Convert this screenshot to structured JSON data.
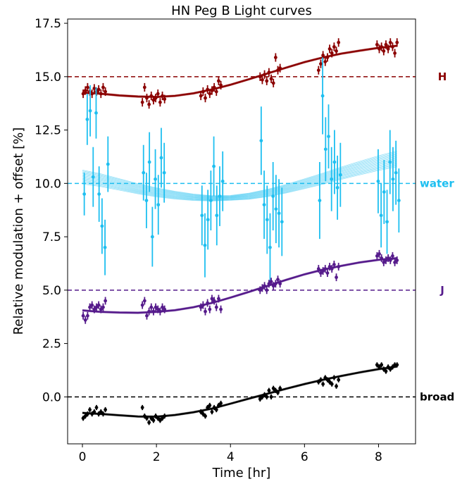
{
  "chart_data": {
    "type": "scatter",
    "title": "HN Peg B Light curves",
    "xlabel": "Time [hr]",
    "ylabel": "Relative modulation + offset [%]",
    "xlim": [
      -0.4,
      9.0
    ],
    "ylim": [
      -2.2,
      17.7
    ],
    "xticks": [
      0,
      2,
      4,
      6,
      8
    ],
    "xtick_labels": [
      "0",
      "2",
      "4",
      "6",
      "8"
    ],
    "yticks": [
      0.0,
      2.5,
      5.0,
      7.5,
      10.0,
      12.5,
      15.0,
      17.5
    ],
    "ytick_labels": [
      "0.0",
      "2.5",
      "5.0",
      "7.5",
      "10.0",
      "12.5",
      "15.0",
      "17.5"
    ],
    "grid": false,
    "series": [
      {
        "name": "H",
        "offset": 15.0,
        "color": "#8b0000",
        "x": [
          0.02,
          0.08,
          0.14,
          0.2,
          0.26,
          0.32,
          0.38,
          0.44,
          0.5,
          0.56,
          0.62,
          1.62,
          1.68,
          1.74,
          1.8,
          1.86,
          1.92,
          1.98,
          2.04,
          2.1,
          2.16,
          2.22,
          3.2,
          3.26,
          3.32,
          3.38,
          3.44,
          3.5,
          3.56,
          3.62,
          3.68,
          3.74,
          4.8,
          4.86,
          4.92,
          4.98,
          5.04,
          5.1,
          5.16,
          5.22,
          5.28,
          5.34,
          6.38,
          6.44,
          6.5,
          6.56,
          6.62,
          6.68,
          6.74,
          6.8,
          6.86,
          6.92,
          7.96,
          8.02,
          8.08,
          8.14,
          8.2,
          8.26,
          8.32,
          8.38,
          8.44,
          8.5
        ],
        "y": [
          14.2,
          14.35,
          14.5,
          14.3,
          14.2,
          14.45,
          14.3,
          14.4,
          14.2,
          14.5,
          14.3,
          13.8,
          14.5,
          14.0,
          13.7,
          14.1,
          13.9,
          14.0,
          14.2,
          13.8,
          14.1,
          13.95,
          14.1,
          14.3,
          14.0,
          14.4,
          14.2,
          14.35,
          14.5,
          14.3,
          14.8,
          14.6,
          15.0,
          14.85,
          15.1,
          14.8,
          15.2,
          14.9,
          14.7,
          15.9,
          15.3,
          15.4,
          15.3,
          15.6,
          16.0,
          15.7,
          15.9,
          16.3,
          16.1,
          16.4,
          16.2,
          16.6,
          16.5,
          16.3,
          16.4,
          16.2,
          16.5,
          16.3,
          16.6,
          16.4,
          16.1,
          16.6
        ],
        "err": [
          0.2,
          0.2,
          0.2,
          0.2,
          0.2,
          0.2,
          0.2,
          0.2,
          0.2,
          0.2,
          0.2,
          0.2,
          0.2,
          0.2,
          0.2,
          0.2,
          0.2,
          0.2,
          0.2,
          0.2,
          0.2,
          0.2,
          0.2,
          0.2,
          0.2,
          0.2,
          0.2,
          0.2,
          0.2,
          0.2,
          0.2,
          0.2,
          0.2,
          0.2,
          0.2,
          0.2,
          0.2,
          0.2,
          0.2,
          0.2,
          0.2,
          0.2,
          0.2,
          0.2,
          0.2,
          0.2,
          0.2,
          0.2,
          0.2,
          0.2,
          0.2,
          0.2,
          0.2,
          0.2,
          0.2,
          0.2,
          0.2,
          0.2,
          0.2,
          0.2,
          0.2,
          0.2
        ],
        "model_x": [
          0,
          0.5,
          1,
          1.5,
          2,
          2.5,
          3,
          3.5,
          4,
          4.5,
          5,
          5.5,
          6,
          6.5,
          7,
          7.5,
          8,
          8.5
        ],
        "model_y": [
          14.25,
          14.2,
          14.12,
          14.07,
          14.05,
          14.1,
          14.22,
          14.4,
          14.62,
          14.88,
          15.15,
          15.42,
          15.68,
          15.9,
          16.08,
          16.22,
          16.35,
          16.45
        ]
      },
      {
        "name": "water",
        "offset": 10.0,
        "color": "#1ebff0",
        "x": [
          0.05,
          0.13,
          0.21,
          0.29,
          0.37,
          0.45,
          0.53,
          0.61,
          0.69,
          1.65,
          1.73,
          1.81,
          1.89,
          1.97,
          2.05,
          2.13,
          2.21,
          3.23,
          3.31,
          3.39,
          3.47,
          3.55,
          3.63,
          3.71,
          3.79,
          4.83,
          4.91,
          4.99,
          5.07,
          5.15,
          5.23,
          5.31,
          5.39,
          6.41,
          6.49,
          6.57,
          6.65,
          6.73,
          6.81,
          6.89,
          6.97,
          7.99,
          8.07,
          8.15,
          8.23,
          8.31,
          8.39,
          8.47,
          8.55
        ],
        "y": [
          9.5,
          13.0,
          13.4,
          10.3,
          13.3,
          9.5,
          8.0,
          7.0,
          10.9,
          10.5,
          9.2,
          11.0,
          7.5,
          10.2,
          9.0,
          11.2,
          10.5,
          8.5,
          7.1,
          8.3,
          9.2,
          10.8,
          8.5,
          9.4,
          10.1,
          12.0,
          9.0,
          8.3,
          7.0,
          9.4,
          8.8,
          8.6,
          8.2,
          9.2,
          14.1,
          11.6,
          12.2,
          10.2,
          11.0,
          9.8,
          10.4,
          10.1,
          8.5,
          9.6,
          8.2,
          11.0,
          10.2,
          10.5,
          9.2
        ],
        "err": [
          1.0,
          1.2,
          1.2,
          1.4,
          1.2,
          1.3,
          1.3,
          1.3,
          1.3,
          1.3,
          1.3,
          1.4,
          1.4,
          1.4,
          1.4,
          1.4,
          1.4,
          1.4,
          1.5,
          1.4,
          1.4,
          1.4,
          1.4,
          1.4,
          1.4,
          1.6,
          1.6,
          1.6,
          1.6,
          1.6,
          1.6,
          1.6,
          1.6,
          1.8,
          1.8,
          1.5,
          1.5,
          1.5,
          1.5,
          1.5,
          1.5,
          1.5,
          1.5,
          1.5,
          1.5,
          1.5,
          1.5,
          1.5,
          1.5
        ],
        "model_x": [
          0,
          0.5,
          1,
          1.5,
          2,
          2.5,
          3,
          3.5,
          4,
          4.5,
          5,
          5.5,
          6,
          6.5,
          7,
          7.5,
          8,
          8.5
        ],
        "model_y": [
          10.3,
          10.15,
          9.95,
          9.75,
          9.58,
          9.45,
          9.35,
          9.3,
          9.32,
          9.4,
          9.55,
          9.75,
          9.98,
          10.22,
          10.48,
          10.72,
          10.95,
          11.15
        ],
        "model_spread": 0.35
      },
      {
        "name": "J",
        "offset": 5.0,
        "color": "#551a8b",
        "x": [
          0.02,
          0.08,
          0.14,
          0.2,
          0.26,
          0.32,
          0.38,
          0.44,
          0.5,
          0.56,
          0.62,
          1.62,
          1.68,
          1.74,
          1.8,
          1.86,
          1.92,
          1.98,
          2.04,
          2.1,
          2.16,
          2.22,
          3.2,
          3.26,
          3.32,
          3.38,
          3.44,
          3.5,
          3.56,
          3.62,
          3.68,
          3.74,
          4.8,
          4.86,
          4.92,
          4.98,
          5.04,
          5.1,
          5.16,
          5.22,
          5.28,
          5.34,
          6.38,
          6.44,
          6.5,
          6.56,
          6.62,
          6.68,
          6.74,
          6.8,
          6.86,
          6.92,
          7.96,
          8.02,
          8.08,
          8.14,
          8.2,
          8.26,
          8.32,
          8.38,
          8.44,
          8.5
        ],
        "y": [
          3.8,
          3.6,
          3.8,
          4.2,
          4.3,
          4.1,
          4.2,
          4.3,
          4.1,
          4.2,
          4.5,
          4.3,
          4.5,
          3.8,
          4.0,
          4.2,
          4.0,
          4.2,
          4.1,
          4.0,
          4.2,
          4.1,
          4.2,
          4.3,
          4.0,
          4.4,
          4.1,
          4.6,
          4.5,
          4.2,
          4.6,
          4.1,
          5.0,
          5.1,
          5.2,
          5.0,
          5.3,
          5.4,
          5.2,
          5.3,
          5.5,
          5.3,
          6.0,
          5.8,
          5.9,
          6.0,
          5.8,
          6.1,
          6.0,
          6.2,
          5.6,
          6.1,
          6.6,
          6.7,
          6.5,
          6.3,
          6.4,
          6.5,
          6.4,
          6.6,
          6.3,
          6.4
        ],
        "err": [
          0.18,
          0.18,
          0.18,
          0.18,
          0.18,
          0.18,
          0.18,
          0.18,
          0.18,
          0.18,
          0.18,
          0.18,
          0.18,
          0.18,
          0.18,
          0.18,
          0.18,
          0.18,
          0.18,
          0.18,
          0.18,
          0.18,
          0.18,
          0.18,
          0.18,
          0.18,
          0.18,
          0.18,
          0.18,
          0.18,
          0.18,
          0.18,
          0.18,
          0.18,
          0.18,
          0.18,
          0.18,
          0.18,
          0.18,
          0.18,
          0.18,
          0.18,
          0.18,
          0.18,
          0.18,
          0.18,
          0.18,
          0.18,
          0.18,
          0.18,
          0.18,
          0.18,
          0.18,
          0.18,
          0.18,
          0.18,
          0.18,
          0.18,
          0.18,
          0.18,
          0.18,
          0.18
        ],
        "model_x": [
          0,
          0.5,
          1,
          1.5,
          2,
          2.5,
          3,
          3.5,
          4,
          4.5,
          5,
          5.5,
          6,
          6.5,
          7,
          7.5,
          8,
          8.5
        ],
        "model_y": [
          4.05,
          3.98,
          3.95,
          3.94,
          3.98,
          4.06,
          4.2,
          4.4,
          4.65,
          4.92,
          5.2,
          5.48,
          5.74,
          5.96,
          6.14,
          6.3,
          6.42,
          6.5
        ]
      },
      {
        "name": "broad",
        "offset": 0.0,
        "color": "#000000",
        "x": [
          0.02,
          0.08,
          0.14,
          0.2,
          0.26,
          0.32,
          0.38,
          0.44,
          0.5,
          0.56,
          0.62,
          1.62,
          1.68,
          1.74,
          1.8,
          1.86,
          1.92,
          1.98,
          2.04,
          2.1,
          2.16,
          2.22,
          3.2,
          3.26,
          3.32,
          3.38,
          3.44,
          3.5,
          3.56,
          3.62,
          3.68,
          3.74,
          4.8,
          4.86,
          4.92,
          4.98,
          5.04,
          5.1,
          5.16,
          5.22,
          5.28,
          5.34,
          6.38,
          6.44,
          6.5,
          6.56,
          6.62,
          6.68,
          6.74,
          6.8,
          6.86,
          6.92,
          7.96,
          8.02,
          8.08,
          8.14,
          8.2,
          8.26,
          8.32,
          8.38,
          8.44,
          8.5
        ],
        "y": [
          -1.0,
          -0.9,
          -0.8,
          -0.6,
          -0.8,
          -0.7,
          -0.5,
          -0.8,
          -0.7,
          -0.8,
          -0.6,
          -0.5,
          -0.9,
          -1.0,
          -1.2,
          -1.0,
          -1.1,
          -0.9,
          -1.0,
          -1.1,
          -1.0,
          -0.9,
          -0.7,
          -0.8,
          -0.9,
          -0.5,
          -0.4,
          -0.7,
          -0.5,
          -0.6,
          -0.4,
          -0.3,
          -0.1,
          0.0,
          0.1,
          0.0,
          0.3,
          0.0,
          0.4,
          0.3,
          0.2,
          0.4,
          0.7,
          0.8,
          0.6,
          0.9,
          0.8,
          0.7,
          0.6,
          0.9,
          0.5,
          0.8,
          1.5,
          1.4,
          1.5,
          1.3,
          1.2,
          1.4,
          1.3,
          1.4,
          1.5,
          1.5
        ],
        "err": [
          0.12,
          0.12,
          0.12,
          0.12,
          0.12,
          0.12,
          0.12,
          0.12,
          0.12,
          0.12,
          0.12,
          0.12,
          0.12,
          0.12,
          0.12,
          0.12,
          0.12,
          0.12,
          0.12,
          0.12,
          0.12,
          0.12,
          0.12,
          0.12,
          0.12,
          0.12,
          0.12,
          0.12,
          0.12,
          0.12,
          0.12,
          0.12,
          0.12,
          0.12,
          0.12,
          0.12,
          0.12,
          0.12,
          0.12,
          0.12,
          0.12,
          0.12,
          0.12,
          0.12,
          0.12,
          0.12,
          0.12,
          0.12,
          0.12,
          0.12,
          0.12,
          0.12,
          0.12,
          0.12,
          0.12,
          0.12,
          0.12,
          0.12,
          0.12,
          0.12,
          0.12,
          0.12
        ],
        "model_x": [
          0,
          0.5,
          1,
          1.5,
          2,
          2.5,
          3,
          3.5,
          4,
          4.5,
          5,
          5.5,
          6,
          6.5,
          7,
          7.5,
          8,
          8.5
        ],
        "model_y": [
          -0.75,
          -0.8,
          -0.86,
          -0.92,
          -0.93,
          -0.85,
          -0.72,
          -0.55,
          -0.32,
          -0.08,
          0.15,
          0.38,
          0.6,
          0.8,
          0.98,
          1.15,
          1.3,
          1.42
        ]
      }
    ]
  }
}
